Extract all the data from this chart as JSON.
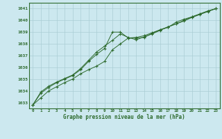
{
  "title": "Graphe pression niveau de la mer (hPa)",
  "background_color": "#cce8ef",
  "grid_color": "#aacdd4",
  "line_color": "#2d6a2d",
  "hours": [
    0,
    1,
    2,
    3,
    4,
    5,
    6,
    7,
    8,
    9,
    10,
    11,
    12,
    13,
    14,
    15,
    16,
    17,
    18,
    19,
    20,
    21,
    22,
    23
  ],
  "series1": [
    1032.8,
    1033.8,
    1034.3,
    1034.7,
    1035.0,
    1035.3,
    1035.8,
    1036.5,
    1037.1,
    1037.6,
    1039.0,
    1039.0,
    1038.5,
    1038.5,
    1038.55,
    1038.9,
    1039.2,
    1039.4,
    1039.85,
    1040.1,
    1040.3,
    1040.55,
    1040.8,
    1041.0
  ],
  "series2": [
    1032.8,
    1033.4,
    1034.0,
    1034.35,
    1034.7,
    1035.0,
    1035.45,
    1035.8,
    1036.1,
    1036.5,
    1037.5,
    1038.0,
    1038.5,
    1038.55,
    1038.7,
    1038.95,
    1039.2,
    1039.45,
    1039.7,
    1039.95,
    1040.25,
    1040.5,
    1040.75,
    1041.0
  ],
  "series3": [
    1032.8,
    1033.9,
    1034.4,
    1034.75,
    1035.05,
    1035.35,
    1035.9,
    1036.6,
    1037.3,
    1037.8,
    1038.3,
    1038.85,
    1038.55,
    1038.35,
    1038.6,
    1038.85,
    1039.15,
    1039.45,
    1039.7,
    1040.0,
    1040.3,
    1040.55,
    1040.8,
    1041.0
  ],
  "ylim": [
    1032.5,
    1041.5
  ],
  "yticks": [
    1033,
    1034,
    1035,
    1036,
    1037,
    1038,
    1039,
    1040,
    1041
  ],
  "xlim": [
    -0.5,
    23.5
  ]
}
